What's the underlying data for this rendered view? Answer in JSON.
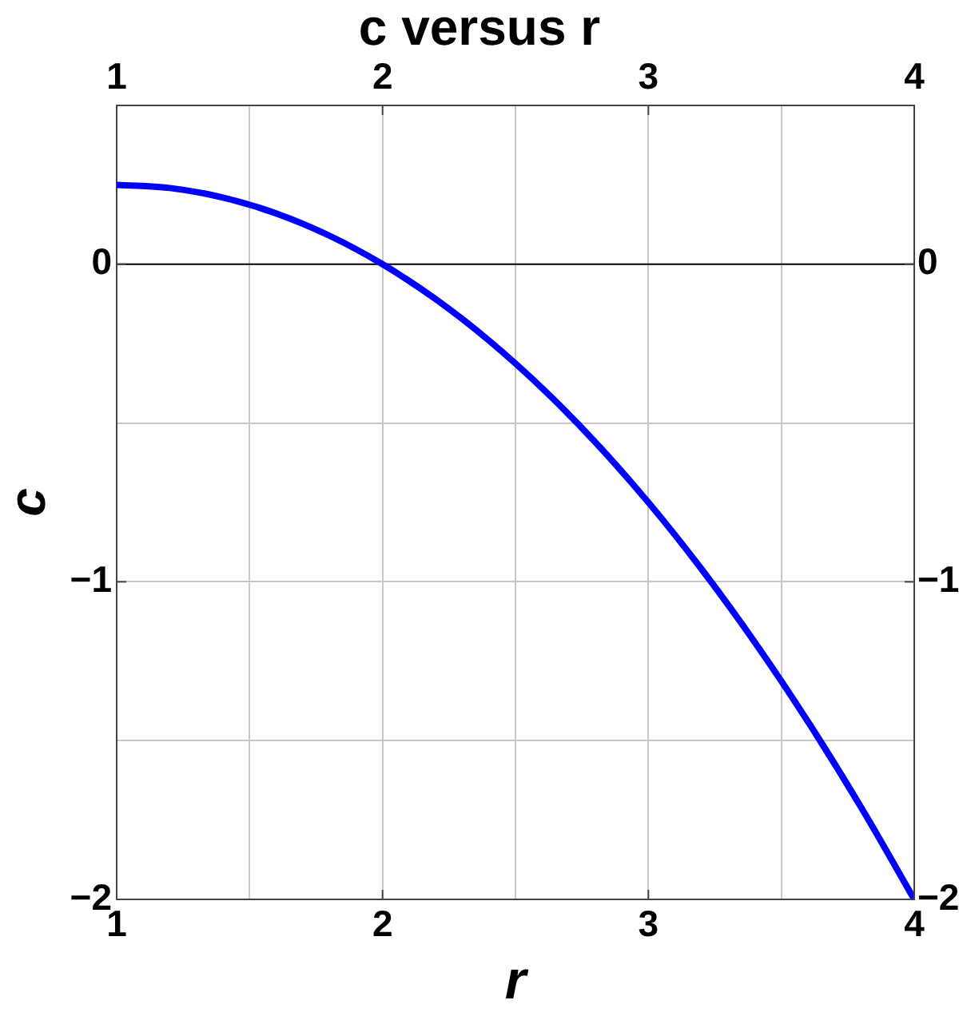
{
  "chart_data": {
    "type": "line",
    "title": "c versus r",
    "xlabel": "r",
    "ylabel": "c",
    "x": [
      1,
      1.2,
      1.4,
      1.6,
      1.8,
      2,
      2.2,
      2.4,
      2.6,
      2.8,
      3,
      3.2,
      3.4,
      3.6,
      3.8,
      4
    ],
    "series": [
      {
        "color": "#0000ff",
        "values": [
          0.25,
          0.24,
          0.21,
          0.16,
          0.09,
          0,
          -0.11,
          -0.24,
          -0.39,
          -0.56,
          -0.75,
          -0.96,
          -1.19,
          -1.44,
          -1.71,
          -2
        ]
      }
    ],
    "xlim": [
      1,
      4
    ],
    "xticks": [
      1,
      {
        "value": 1.5,
        "label": null
      },
      2,
      {
        "value": 2.5,
        "label": null
      },
      3,
      {
        "value": 3.5,
        "label": null
      },
      4
    ],
    "x2lim": [
      1,
      4
    ],
    "x2ticks": [
      1,
      2,
      3,
      4
    ],
    "ylim": [
      -2,
      0.5
    ],
    "yticks": [
      {
        "value": -2,
        "label": "−2"
      },
      {
        "value": -1.5,
        "label": null
      },
      {
        "value": -1,
        "label": "−1"
      },
      {
        "value": -0.5,
        "label": null
      },
      0
    ],
    "y2lim": [
      -2,
      0.5
    ],
    "y2ticks": [
      {
        "value": -2,
        "label": "−2"
      },
      {
        "value": -1,
        "label": "−1"
      },
      0
    ],
    "ref_lines": [
      {
        "axis": "y",
        "value": 0,
        "color": "#000000"
      }
    ],
    "grid": true,
    "marker": "none",
    "line_style": "solid"
  }
}
